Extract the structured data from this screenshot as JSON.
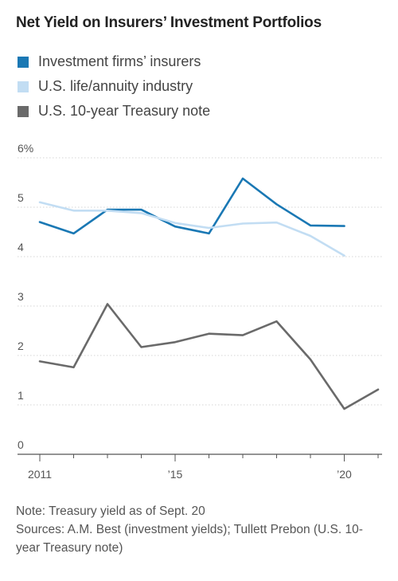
{
  "chart_data": {
    "type": "line",
    "title": "Net Yield on Insurers’ Investment Portfolios",
    "y_ticks": [
      "6%",
      "5",
      "4",
      "3",
      "2",
      "1",
      "0"
    ],
    "x_ticks": [
      {
        "x": 2011,
        "label": "2011"
      },
      {
        "x": 2015,
        "label": "’15"
      },
      {
        "x": 2020,
        "label": "’20"
      }
    ],
    "xlim": [
      2011,
      2021
    ],
    "ylim": [
      0,
      6
    ],
    "grid": true,
    "legend_position": "top-left",
    "series": [
      {
        "name": "Investment firms’ insurers",
        "color": "#1a78b4",
        "x": [
          2011,
          2012,
          2013,
          2014,
          2015,
          2016,
          2017,
          2018,
          2019,
          2020
        ],
        "y": [
          4.7,
          4.47,
          4.95,
          4.95,
          4.61,
          4.47,
          5.58,
          5.06,
          4.63,
          4.62
        ]
      },
      {
        "name": "U.S. life/annuity industry",
        "color": "#c2ddf3",
        "x": [
          2011,
          2012,
          2013,
          2014,
          2015,
          2016,
          2017,
          2018,
          2019,
          2020
        ],
        "y": [
          5.1,
          4.93,
          4.93,
          4.88,
          4.68,
          4.58,
          4.67,
          4.69,
          4.42,
          4.02
        ]
      },
      {
        "name": "U.S. 10-year Treasury note",
        "color": "#6a6a6a",
        "x": [
          2011,
          2012,
          2013,
          2014,
          2015,
          2016,
          2017,
          2018,
          2019,
          2020,
          2021
        ],
        "y": [
          1.88,
          1.76,
          3.04,
          2.17,
          2.27,
          2.44,
          2.41,
          2.69,
          1.92,
          0.92,
          1.31
        ]
      }
    ]
  },
  "notes": [
    "Note: Treasury yield as of Sept. 20",
    "Sources: A.M. Best (investment yields); Tullett Prebon (U.S. 10-year Treasury note)"
  ]
}
